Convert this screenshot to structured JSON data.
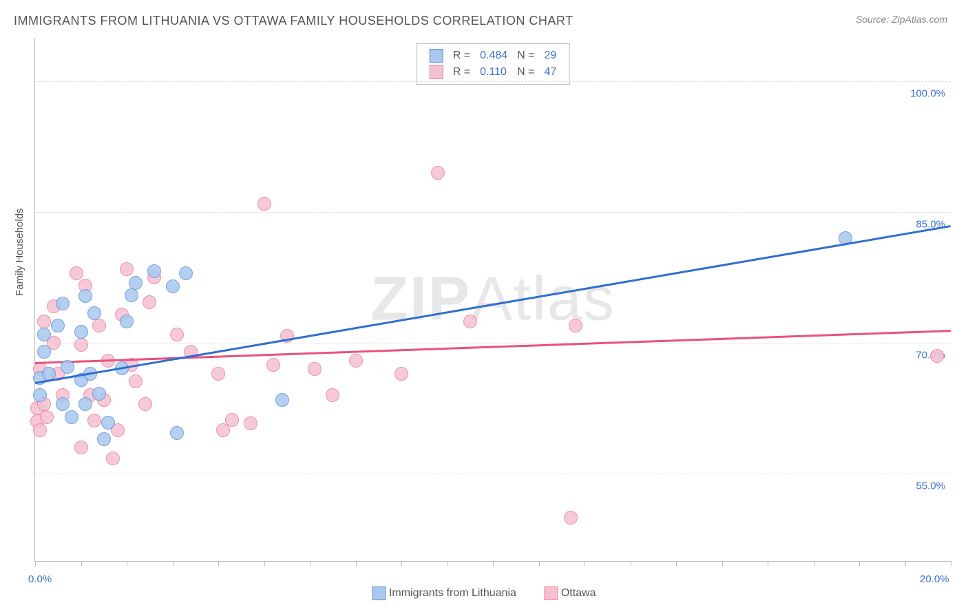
{
  "title": "IMMIGRANTS FROM LITHUANIA VS OTTAWA FAMILY HOUSEHOLDS CORRELATION CHART",
  "source": "Source: ZipAtlas.com",
  "ylabel": "Family Households",
  "watermark_bold": "ZIP",
  "watermark_rest": "Atlas",
  "chart": {
    "type": "scatter",
    "xlim": [
      0,
      20
    ],
    "ylim": [
      45,
      105
    ],
    "x_ticks": [
      0,
      1,
      2,
      3,
      4,
      5,
      6,
      7,
      8,
      9,
      10,
      11,
      12,
      13,
      14,
      15,
      16,
      17,
      18,
      19,
      20
    ],
    "x_tick_labels": {
      "0": "0.0%",
      "20": "20.0%"
    },
    "y_gridlines": [
      55,
      70,
      85,
      100
    ],
    "y_tick_labels": {
      "55": "55.0%",
      "70": "70.0%",
      "85": "85.0%",
      "100": "100.0%"
    },
    "background_color": "#ffffff",
    "grid_color": "#dddddd",
    "axis_color": "#bbbbbb",
    "label_color": "#3b6fd6",
    "point_radius": 9,
    "series": {
      "lithuania": {
        "label": "Immigrants from Lithuania",
        "fill": "#a9c7ef",
        "stroke": "#5e93dc",
        "r_value": "0.484",
        "n_value": "29",
        "trend": {
          "x1": 0,
          "y1": 65.5,
          "x2": 20,
          "y2": 83.5,
          "color": "#2f6ed0",
          "width": 2.5
        },
        "points": [
          [
            0.1,
            64
          ],
          [
            0.1,
            66
          ],
          [
            0.2,
            69
          ],
          [
            0.2,
            71
          ],
          [
            0.3,
            66.5
          ],
          [
            0.5,
            72
          ],
          [
            0.6,
            74.5
          ],
          [
            0.6,
            63
          ],
          [
            0.7,
            67.3
          ],
          [
            0.8,
            61.5
          ],
          [
            1.0,
            65.8
          ],
          [
            1.0,
            71.3
          ],
          [
            1.1,
            63
          ],
          [
            1.1,
            75.4
          ],
          [
            1.2,
            66.5
          ],
          [
            1.3,
            73.4
          ],
          [
            1.4,
            64.2
          ],
          [
            1.5,
            59
          ],
          [
            1.6,
            60.9
          ],
          [
            1.9,
            67.1
          ],
          [
            2.0,
            72.5
          ],
          [
            2.1,
            75.5
          ],
          [
            2.2,
            76.9
          ],
          [
            2.6,
            78.2
          ],
          [
            3.0,
            76.5
          ],
          [
            3.3,
            78
          ],
          [
            3.1,
            59.7
          ],
          [
            5.4,
            63.5
          ],
          [
            17.7,
            82
          ]
        ]
      },
      "ottawa": {
        "label": "Ottawa",
        "fill": "#f6c0cf",
        "stroke": "#e781a0",
        "r_value": "0.110",
        "n_value": "47",
        "trend": {
          "x1": 0,
          "y1": 67.8,
          "x2": 20,
          "y2": 71.5,
          "color": "#e9517b",
          "width": 2.5
        },
        "points": [
          [
            0.05,
            61
          ],
          [
            0.05,
            62.5
          ],
          [
            0.1,
            60
          ],
          [
            0.1,
            67
          ],
          [
            0.2,
            63
          ],
          [
            0.2,
            72.5
          ],
          [
            0.25,
            61.5
          ],
          [
            0.4,
            70
          ],
          [
            0.4,
            74.2
          ],
          [
            0.5,
            66.5
          ],
          [
            0.6,
            64
          ],
          [
            0.9,
            78
          ],
          [
            1.0,
            69.8
          ],
          [
            1.0,
            58
          ],
          [
            1.1,
            76.6
          ],
          [
            1.2,
            64
          ],
          [
            1.3,
            61.1
          ],
          [
            1.4,
            72
          ],
          [
            1.5,
            63.5
          ],
          [
            1.6,
            68
          ],
          [
            1.7,
            56.8
          ],
          [
            1.8,
            60
          ],
          [
            1.9,
            73.3
          ],
          [
            2.0,
            78.5
          ],
          [
            2.1,
            67.5
          ],
          [
            2.2,
            65.6
          ],
          [
            2.4,
            63
          ],
          [
            2.5,
            74.7
          ],
          [
            2.6,
            77.5
          ],
          [
            3.1,
            71
          ],
          [
            3.4,
            69
          ],
          [
            4.0,
            66.5
          ],
          [
            4.1,
            60
          ],
          [
            4.3,
            61.2
          ],
          [
            4.7,
            60.8
          ],
          [
            5.0,
            86
          ],
          [
            5.2,
            67.5
          ],
          [
            5.5,
            70.8
          ],
          [
            6.1,
            67
          ],
          [
            6.5,
            64
          ],
          [
            7.0,
            68
          ],
          [
            8.0,
            66.5
          ],
          [
            8.8,
            89.5
          ],
          [
            9.5,
            72.5
          ],
          [
            11.8,
            72
          ],
          [
            11.7,
            50
          ],
          [
            19.7,
            68.5
          ]
        ]
      }
    }
  },
  "legend_top": {
    "r_label": "R =",
    "n_label": "N ="
  }
}
